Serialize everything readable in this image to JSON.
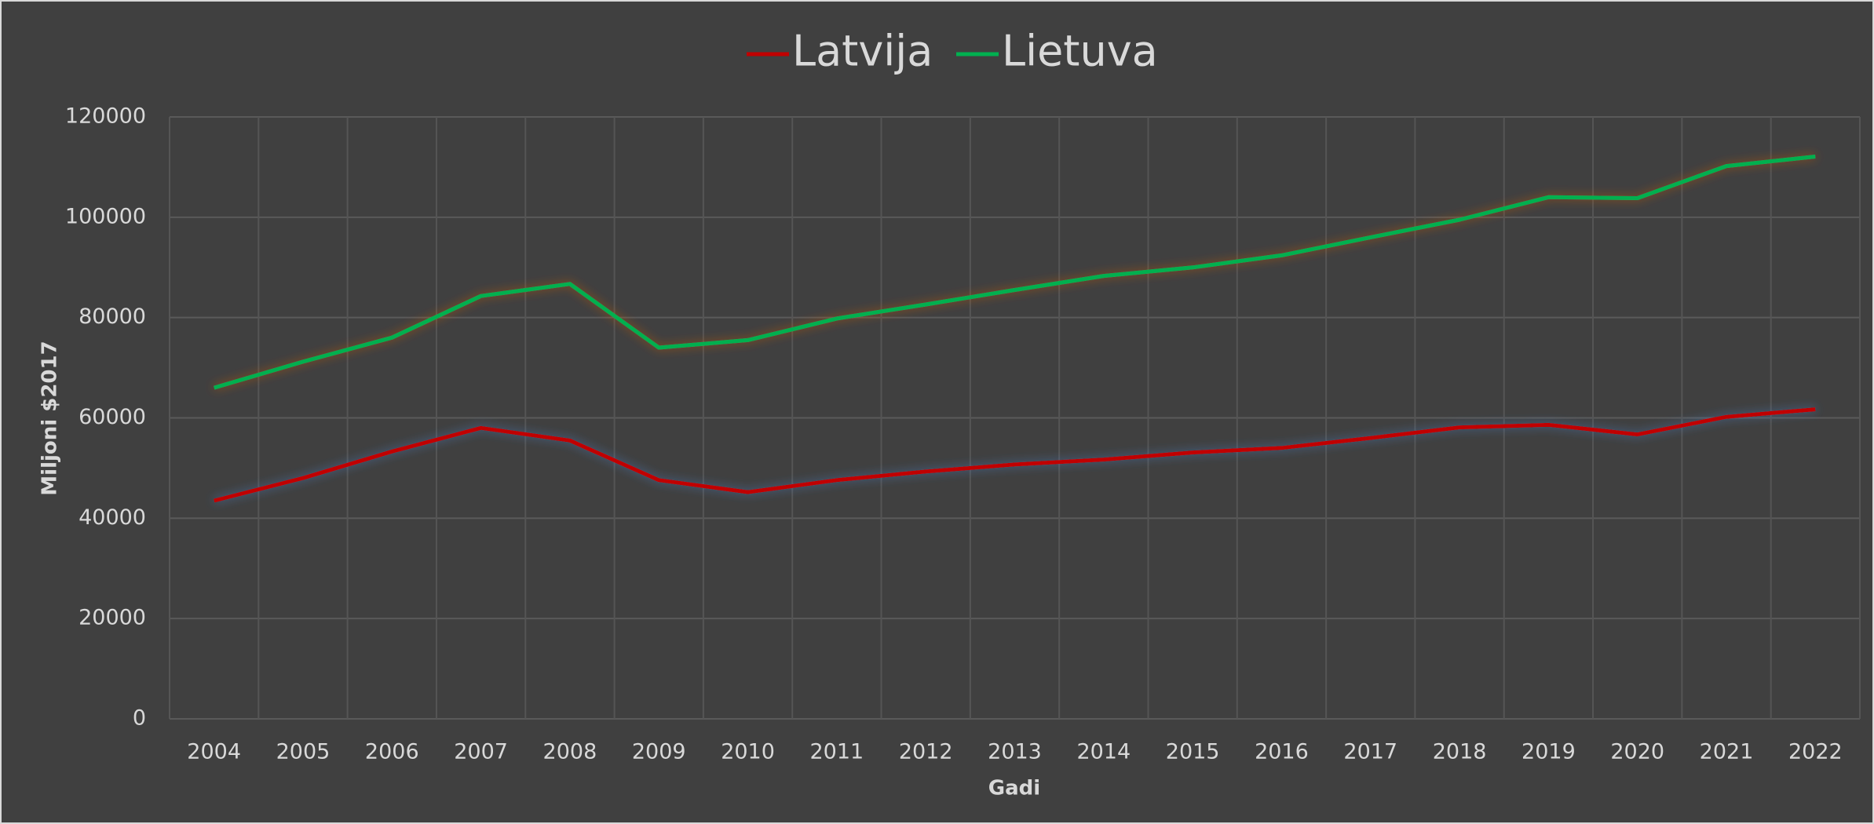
{
  "chart_data": {
    "type": "line",
    "categories": [
      "2004",
      "2005",
      "2006",
      "2007",
      "2008",
      "2009",
      "2010",
      "2011",
      "2012",
      "2013",
      "2014",
      "2015",
      "2016",
      "2017",
      "2018",
      "2019",
      "2020",
      "2021",
      "2022"
    ],
    "series": [
      {
        "name": "Latvija",
        "color": "#c00000",
        "glow": "#4a7bbf",
        "values": [
          43500,
          48000,
          53300,
          58000,
          55500,
          47600,
          45200,
          47600,
          49300,
          50700,
          51700,
          53100,
          54000,
          56000,
          58100,
          58600,
          56700,
          60200,
          61700
        ]
      },
      {
        "name": "Lietuva",
        "color": "#00b050",
        "glow": "#c55a11",
        "values": [
          66000,
          71200,
          76000,
          84300,
          86700,
          74000,
          75500,
          79800,
          82600,
          85500,
          88300,
          90000,
          92400,
          96000,
          99500,
          104000,
          103800,
          110200,
          112100
        ]
      }
    ],
    "xlabel": "Gadi",
    "ylabel": "Miljoni $2017",
    "ylim": [
      0,
      120000
    ],
    "yticks": [
      0,
      20000,
      40000,
      60000,
      80000,
      100000,
      120000
    ],
    "grid": true,
    "legend": "top"
  }
}
